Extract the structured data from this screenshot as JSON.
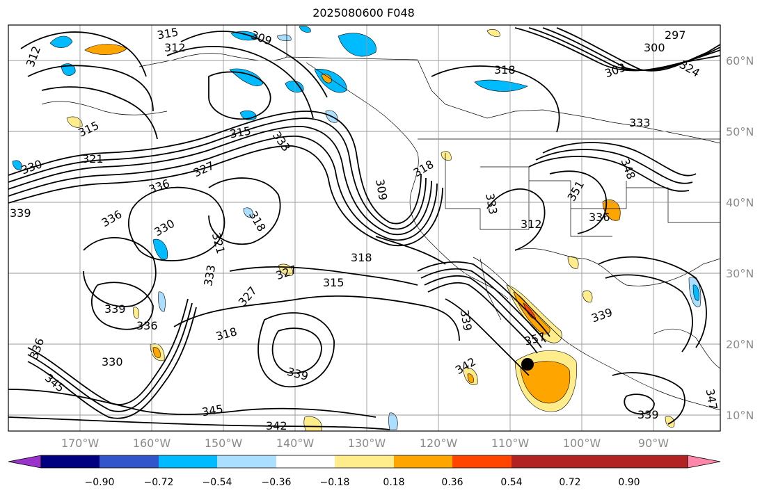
{
  "title": "2025080600 F048",
  "lon_ticks": [
    "170°W",
    "160°W",
    "150°W",
    "140°W",
    "130°W",
    "120°W",
    "110°W",
    "100°W",
    "90°W"
  ],
  "lat_ticks": [
    "60°N",
    "50°N",
    "40°N",
    "30°N",
    "20°N",
    "10°N"
  ],
  "colorbar": {
    "colors": [
      "#9933cc",
      "#000080",
      "#3355cc",
      "#00bbff",
      "#aadfff",
      "#ffffff",
      "#ffec8b",
      "#ffa500",
      "#ff4500",
      "#b22222",
      "#ff88aa"
    ],
    "labels": [
      "−0.90",
      "−0.72",
      "−0.54",
      "−0.36",
      "−0.18",
      "0.18",
      "0.36",
      "0.54",
      "0.72",
      "0.90"
    ]
  },
  "contour_labels": [
    "312",
    "315",
    "312",
    "309",
    "297",
    "300",
    "303",
    "324",
    "318",
    "315",
    "333",
    "315",
    "333",
    "327",
    "336",
    "330",
    "339",
    "336",
    "321",
    "318",
    "330",
    "321",
    "333",
    "318",
    "327",
    "309",
    "318",
    "315",
    "327",
    "339",
    "336",
    "318",
    "336",
    "330",
    "339",
    "345",
    "342",
    "342",
    "339",
    "345",
    "339",
    "347",
    "333",
    "312",
    "339",
    "336",
    "351",
    "357",
    "348"
  ]
}
